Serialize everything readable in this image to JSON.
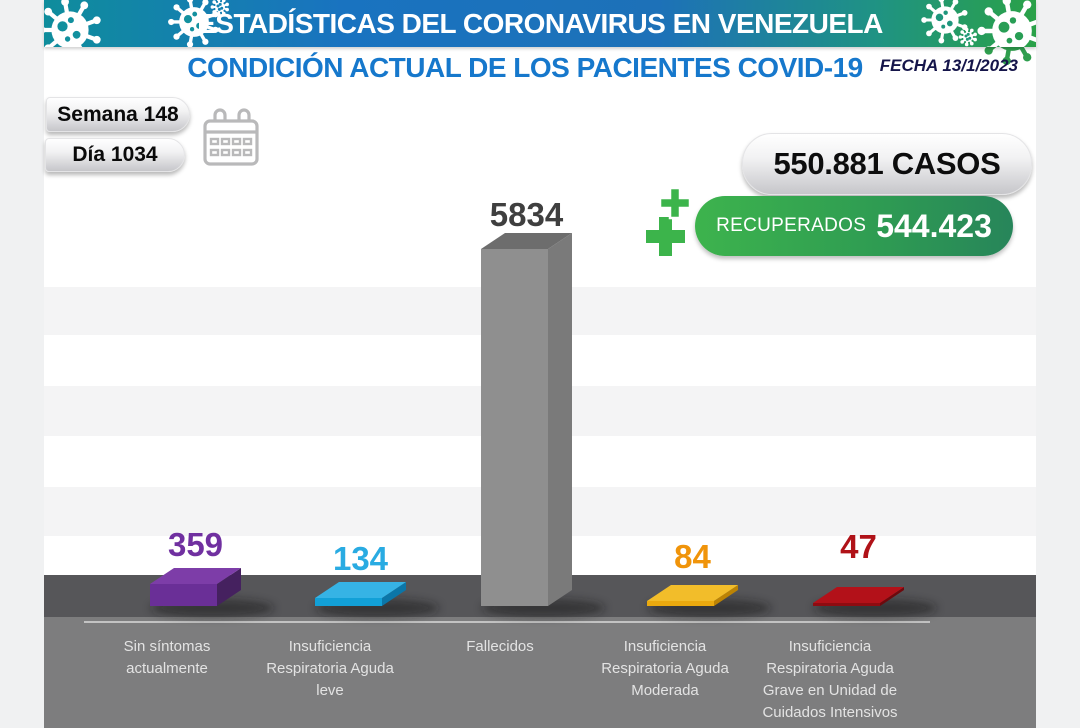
{
  "header": {
    "title": "ESTADÍSTICAS DEL CORONAVIRUS EN VENEZUELA",
    "subtitle": "CONDICIÓN ACTUAL DE LOS PACIENTES COVID-19",
    "date_label": "FECHA 13/1/2023"
  },
  "period": {
    "week_label": "Semana 148",
    "day_label": "Día 1034"
  },
  "totals": {
    "cases_label": "550.881 CASOS",
    "recovered_label": "RECUPERADOS",
    "recovered_value": "544.423",
    "recovered_badge_color": "#2fa052",
    "cases_badge_color": "#c6c6ca"
  },
  "icons": {
    "virus": "virus-icon",
    "calendar": "calendar-icon",
    "medical_cross": "medical-cross-icon"
  },
  "chart_data": {
    "type": "bar",
    "style": "3d-column",
    "title": "CONDICIÓN ACTUAL DE LOS PACIENTES COVID-19",
    "categories": [
      "Sin síntomas actualmente",
      "Insuficiencia Respiratoria Aguda leve",
      "Fallecidos",
      "Insuficiencia Respiratoria Aguda Moderada",
      "Insuficiencia Respiratoria Aguda Grave en Unidad de Cuidados Intensivos"
    ],
    "category_lines": [
      [
        "Sin síntomas",
        "actualmente"
      ],
      [
        "Insuficiencia",
        "Respiratoria Aguda",
        "leve"
      ],
      [
        "Fallecidos"
      ],
      [
        "Insuficiencia",
        "Respiratoria Aguda",
        "Moderada"
      ],
      [
        "Insuficiencia",
        "Respiratoria Aguda",
        "Grave en Unidad de",
        "Cuidados Intensivos"
      ]
    ],
    "values": [
      359,
      134,
      5834,
      84,
      47
    ],
    "ymax": 5834,
    "ylim": [
      0,
      5834
    ],
    "grid": "horizontal-stripes",
    "legend": "none",
    "value_labels": "above-bars",
    "bar_colors": [
      {
        "name": "purple",
        "front": "#6a2f97",
        "top": "#7d3da8",
        "side": "#45215f",
        "label": "#7030a0"
      },
      {
        "name": "cyan",
        "front": "#12a0d7",
        "top": "#36b3e5",
        "side": "#0b76a8",
        "label": "#29abe2"
      },
      {
        "name": "gray",
        "front": "#8f8f8f",
        "top": "#6d6d6d",
        "side": "#7a7a7a",
        "label": "#3f3f3f"
      },
      {
        "name": "orange",
        "front": "#eaa90e",
        "top": "#f2bd2a",
        "side": "#bc8304",
        "label": "#f0940a"
      },
      {
        "name": "red",
        "front": "#8e0c11",
        "top": "#b31119",
        "side": "#6e090d",
        "label": "#b01218"
      }
    ],
    "floor_color": "#565659"
  }
}
